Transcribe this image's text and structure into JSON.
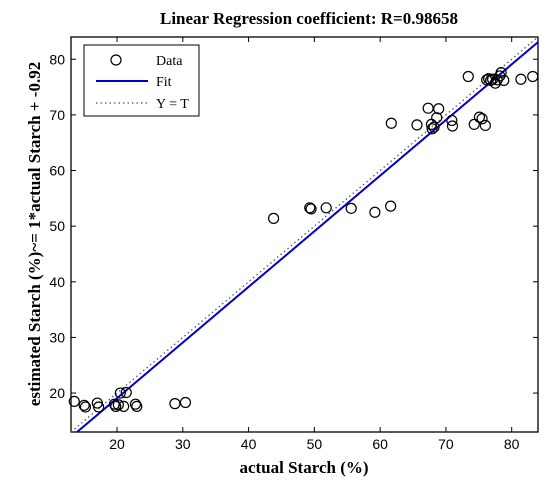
{
  "chart_data": {
    "type": "scatter",
    "title": "Linear Regression coefficient: R=0.98658",
    "xlabel": "actual Starch (%)",
    "ylabel": "estimated Starch (%)~= 1*actual Starch + -0.92",
    "xlim": [
      13,
      84
    ],
    "ylim": [
      13,
      84
    ],
    "xticks": [
      20,
      30,
      40,
      50,
      60,
      70,
      80
    ],
    "yticks": [
      20,
      30,
      40,
      50,
      60,
      70,
      80
    ],
    "grid": false,
    "legend_position": "top-left",
    "legend": [
      "Data",
      "Fit",
      "Y = T"
    ],
    "series": [
      {
        "name": "Data",
        "marker": "open-circle",
        "color": "#000000",
        "points": [
          [
            13.5,
            18.5
          ],
          [
            15,
            17.8
          ],
          [
            15.2,
            17.5
          ],
          [
            17,
            18.2
          ],
          [
            17.2,
            17.5
          ],
          [
            19.6,
            18
          ],
          [
            19.8,
            17.6
          ],
          [
            20.2,
            17.9
          ],
          [
            20.5,
            20
          ],
          [
            21,
            17.6
          ],
          [
            21.4,
            20.1
          ],
          [
            22.8,
            18
          ],
          [
            23,
            17.6
          ],
          [
            28.8,
            18.1
          ],
          [
            30.4,
            18.3
          ],
          [
            43.8,
            51.4
          ],
          [
            49.3,
            53.3
          ],
          [
            49.5,
            53.1
          ],
          [
            51.8,
            53.3
          ],
          [
            55.6,
            53.2
          ],
          [
            59.2,
            52.5
          ],
          [
            61.6,
            53.6
          ],
          [
            61.7,
            68.5
          ],
          [
            65.6,
            68.2
          ],
          [
            67.3,
            71.2
          ],
          [
            67.8,
            68.3
          ],
          [
            67.9,
            67.5
          ],
          [
            68.2,
            67.8
          ],
          [
            68.6,
            69.5
          ],
          [
            68.9,
            71.1
          ],
          [
            70.9,
            69
          ],
          [
            71,
            68
          ],
          [
            73.4,
            76.9
          ],
          [
            74.3,
            68.3
          ],
          [
            75.1,
            69.6
          ],
          [
            75.5,
            69.3
          ],
          [
            76,
            68.1
          ],
          [
            76.2,
            76.3
          ],
          [
            76.5,
            76.5
          ],
          [
            76.8,
            76.2
          ],
          [
            77.1,
            76.4
          ],
          [
            77.5,
            75.7
          ],
          [
            77.8,
            76.3
          ],
          [
            78.2,
            77
          ],
          [
            78.4,
            77.6
          ],
          [
            78.8,
            76.2
          ],
          [
            81.4,
            76.4
          ],
          [
            83.2,
            76.9
          ]
        ]
      },
      {
        "name": "Fit",
        "type": "line",
        "slope": 1,
        "intercept": -0.92,
        "color": "#0000cc"
      },
      {
        "name": "Y = T",
        "type": "line",
        "slope": 1,
        "intercept": 0,
        "style": "dotted",
        "color": "#555555"
      }
    ]
  }
}
